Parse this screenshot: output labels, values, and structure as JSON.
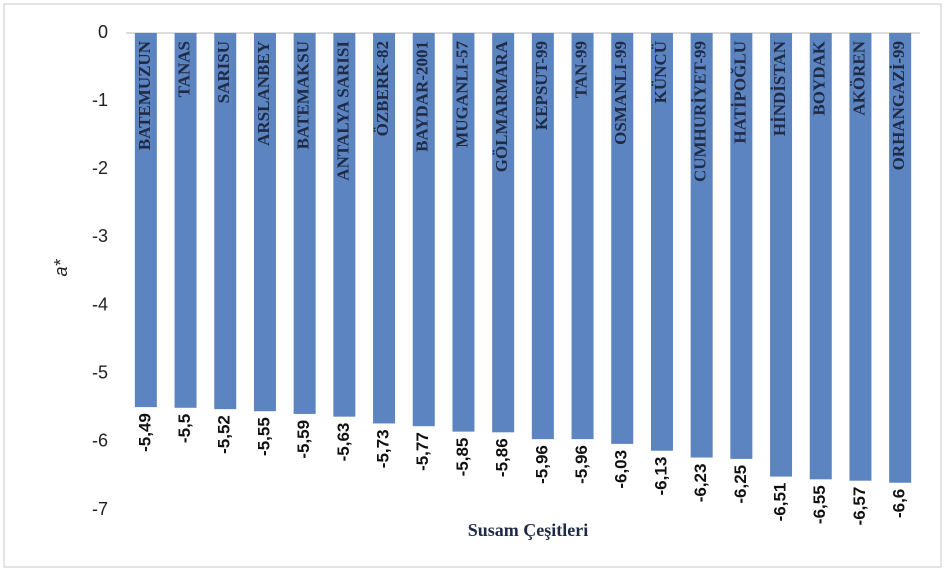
{
  "chart_data": {
    "type": "bar",
    "y_label": "a*",
    "x_label": "Susam Çeşitleri",
    "categories": [
      "BATEMUZUN",
      "TANAS",
      "SARISU",
      "ARSLANBEY",
      "BATEMAKSU",
      "ANTALYA SARISI",
      "ÖZBERK-82",
      "BAYDAR-2001",
      "MUGANLI-57",
      "GÖLMARMARA",
      "KEPSUT-99",
      "TAN-99",
      "OSMANLI-99",
      "KÜNCÜ",
      "CUMHURİYET-99",
      "HATİPOĞLU",
      "HİNDİSTAN",
      "BOYDAK",
      "AKÖREN",
      "ORHANGAZİ-99"
    ],
    "values": [
      -5.49,
      -5.5,
      -5.52,
      -5.55,
      -5.59,
      -5.63,
      -5.73,
      -5.77,
      -5.85,
      -5.86,
      -5.96,
      -5.96,
      -6.03,
      -6.13,
      -6.23,
      -6.25,
      -6.51,
      -6.55,
      -6.57,
      -6.6
    ],
    "value_labels": [
      "-5,49",
      "-5,5",
      "-5,52",
      "-5,55",
      "-5,59",
      "-5,63",
      "-5,73",
      "-5,77",
      "-5,85",
      "-5,86",
      "-5,96",
      "-5,96",
      "-6,03",
      "-6,13",
      "-6,23",
      "-6,25",
      "-6,51",
      "-6,55",
      "-6,57",
      "-6,6"
    ],
    "color": "#5b84c0",
    "ylim": [
      -7,
      0
    ],
    "yticks": [
      0,
      -1,
      -2,
      -3,
      -4,
      -5,
      -6,
      -7
    ]
  }
}
